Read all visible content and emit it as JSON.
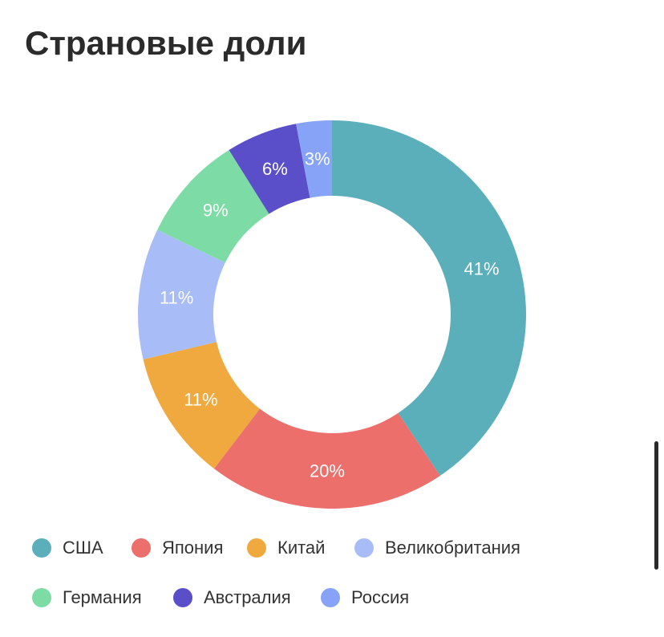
{
  "chart_data": {
    "type": "pie",
    "title": "Страновые доли",
    "donut": true,
    "legend_position": "bottom",
    "categories": [
      "США",
      "Япония",
      "Китай",
      "Великобритания",
      "Германия",
      "Австралия",
      "Россия"
    ],
    "values": [
      41,
      20,
      11,
      11,
      9,
      6,
      3
    ],
    "labels": [
      "41%",
      "20%",
      "11%",
      "11%",
      "9%",
      "6%",
      "3%"
    ],
    "colors": [
      "#5aafbb",
      "#ec6f6b",
      "#f0a93e",
      "#a8bdf7",
      "#7ddca6",
      "#5a4fc9",
      "#86a3f7"
    ]
  }
}
